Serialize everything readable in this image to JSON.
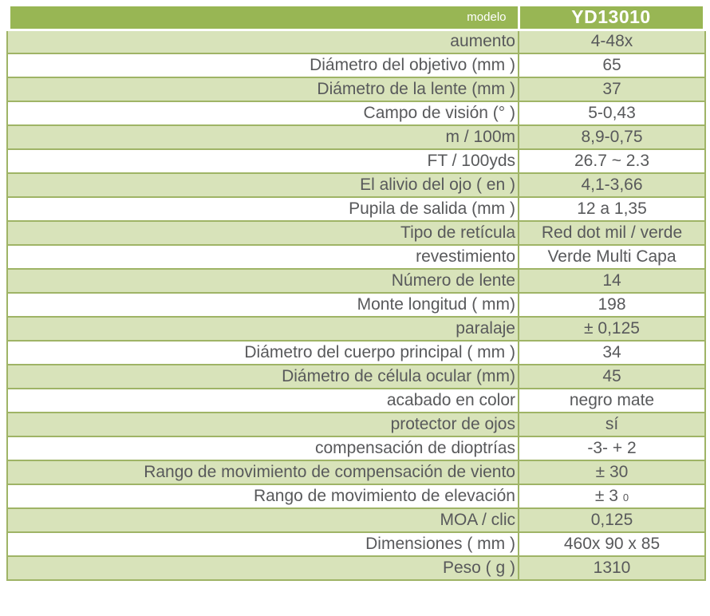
{
  "header": {
    "label": "modelo",
    "value": "YD13010"
  },
  "rows": [
    {
      "label": "aumento",
      "value": "4-48x"
    },
    {
      "label": "Diámetro del objetivo (mm )",
      "value": "65"
    },
    {
      "label": "Diámetro de la lente (mm )",
      "value": "37"
    },
    {
      "label": "Campo de visión (° )",
      "value": "5-0,43"
    },
    {
      "label": "m / 100m",
      "value": "8,9-0,75"
    },
    {
      "label": "FT / 100yds",
      "value": "26.7 ~ 2.3"
    },
    {
      "label": "El alivio del ojo ( en )",
      "value": "4,1-3,66"
    },
    {
      "label": "Pupila de salida (mm )",
      "value": "12 a 1,35"
    },
    {
      "label": "Tipo de retícula",
      "value": "Red dot mil / verde"
    },
    {
      "label": "revestimiento",
      "value": "Verde Multi Capa"
    },
    {
      "label": "Número de lente",
      "value": "14"
    },
    {
      "label": "Monte longitud ( mm)",
      "value": "198"
    },
    {
      "label": "paralaje",
      "value": "± 0,125"
    },
    {
      "label": "Diámetro del cuerpo principal ( mm )",
      "value": "34"
    },
    {
      "label": "Diámetro de célula ocular (mm)",
      "value": "45"
    },
    {
      "label": "acabado en color",
      "value": "negro mate"
    },
    {
      "label": "protector de ojos",
      "value": "sí"
    },
    {
      "label": "compensación de dioptrías",
      "value": "-3- + 2"
    },
    {
      "label": "Rango de movimiento de compensación de viento",
      "value": "± 30"
    },
    {
      "label": "Rango de movimiento de elevación",
      "value": "± 3",
      "value_small": "0"
    },
    {
      "label": "MOA / clic",
      "value": "0,125"
    },
    {
      "label": "Dimensiones ( mm )",
      "value": "460x 90 x 85"
    },
    {
      "label": "Peso ( g )",
      "value": "1310"
    }
  ],
  "colors": {
    "header_green": "#98b654",
    "row_green": "#d8e3ba",
    "border_olive": "#9fb466",
    "text_gray": "#58595b",
    "header_text": "#ffffff"
  }
}
